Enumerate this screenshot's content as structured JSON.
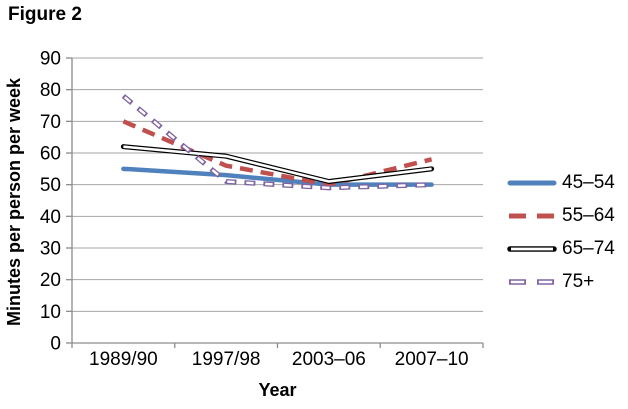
{
  "figure_title": "Figure 2",
  "chart_data": {
    "type": "line",
    "title": "Figure 2",
    "xlabel": "Year",
    "ylabel": "Minutes per person per week",
    "categories": [
      "1989/90",
      "1997/98",
      "2003–06",
      "2007–10"
    ],
    "series": [
      {
        "name": "45–54",
        "color": "#4F81BD",
        "style": "solid-thick",
        "values": [
          55,
          53,
          50,
          50
        ]
      },
      {
        "name": "55–64",
        "color": "#C0504D",
        "style": "dashed-thick",
        "values": [
          70,
          56,
          50,
          58
        ]
      },
      {
        "name": "65–74",
        "color": "#000000",
        "style": "outline",
        "values": [
          62,
          59,
          51,
          55
        ]
      },
      {
        "name": "75+",
        "color": "#8064A2",
        "style": "outline-dashed",
        "values": [
          78,
          51,
          49,
          50
        ]
      }
    ],
    "ylim": [
      0,
      90
    ],
    "yticks": [
      0,
      10,
      20,
      30,
      40,
      50,
      60,
      70,
      80,
      90
    ],
    "grid": "horizontal",
    "legend_position": "right"
  },
  "colors": {
    "background": "#FFFFFF",
    "gridline": "#A6A6A6",
    "axis": "#8C8C8C",
    "text": "#000000",
    "series_inner_fill": "#FFFFFF"
  }
}
